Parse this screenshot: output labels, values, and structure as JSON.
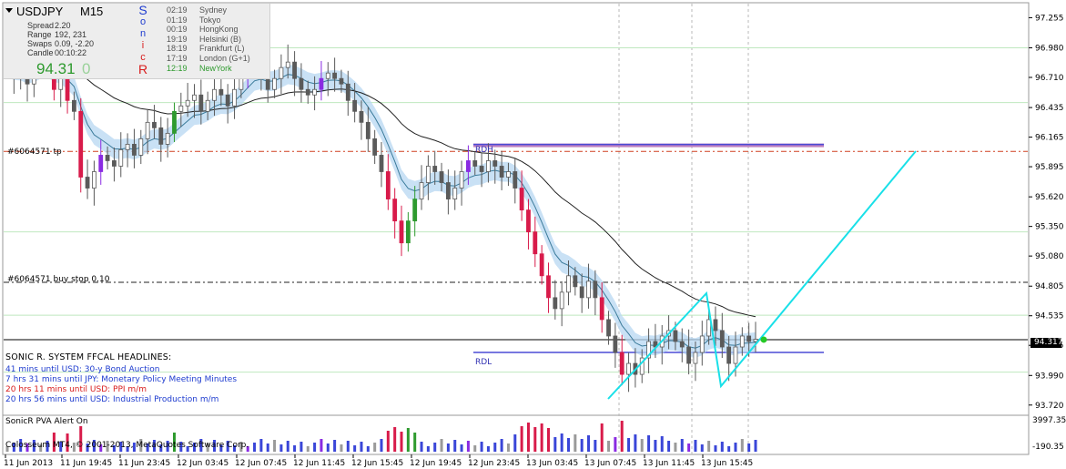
{
  "symbol": "USDJPY",
  "timeframe": "M15",
  "info": {
    "rows": [
      {
        "label": "Spread",
        "value": "2.20"
      },
      {
        "label": "Range",
        "value": "192, 231"
      },
      {
        "label": "Swaps",
        "value": "0.09, -2.20"
      },
      {
        "label": "Candle",
        "value": "00:10:22"
      }
    ],
    "price_main": "94.31",
    "price_tail": "0",
    "sonic_letters": [
      "S",
      "o",
      "n",
      "i",
      "c",
      "R"
    ]
  },
  "sessions": [
    {
      "time": "02:19",
      "name": "Sydney",
      "color": "#555555"
    },
    {
      "time": "01:19",
      "name": "Tokyo",
      "color": "#555555"
    },
    {
      "time": "00:19",
      "name": "HongKong",
      "color": "#555555"
    },
    {
      "time": "19:19",
      "name": "Helsinki  (B)",
      "color": "#555555"
    },
    {
      "time": "18:19",
      "name": "Frankfurt  (L)",
      "color": "#555555"
    },
    {
      "time": "17:19",
      "name": "London  (G+1)",
      "color": "#555555"
    },
    {
      "time": "12:19",
      "name": "NewYork",
      "color": "#2e9a2e"
    }
  ],
  "order_labels": {
    "tp": "#6064571 tp",
    "buy_stop": "#6064571 buy stop 0.10"
  },
  "level_labels": {
    "rdl": "RDL",
    "rdh": "RDH"
  },
  "headlines": {
    "title": "SONIC R. SYSTEM  FFCAL HEADLINES:",
    "items": [
      {
        "text": "41 mins until USD: 30-y Bond Auction",
        "color": "#1e3ccf"
      },
      {
        "text": "7 hrs 31 mins until JPY: Monetary Policy Meeting Minutes",
        "color": "#1e3ccf"
      },
      {
        "text": "20 hrs 11 mins until USD: PPI m/m",
        "color": "#d81b1b"
      },
      {
        "text": "20 hrs 56 mins until USD: Industrial Production m/m",
        "color": "#1e3ccf"
      }
    ]
  },
  "subwindow": {
    "title": "SonicR PVA   Alert On",
    "copyright": "Colosseum MT4, © 2001-2013, MetaQuotes Software Corp.",
    "scale_top": "3997.35",
    "scale_bottom": "-190.35"
  },
  "current_price_label": "94.317",
  "colors": {
    "bull": "#5a5a5a",
    "bear": "#5a5a5a",
    "climax_up": "#2e9a2e",
    "climax_down": "#d81b4a",
    "rising": "#8a2be2",
    "ema_band": "#b7d7f2",
    "ema_line": "#3a7a9a",
    "slow_ma": "#222222",
    "trendline": "#19e0e8",
    "rdh_line": "#4b4bd6",
    "rdh_line2": "#c080c0",
    "tp_line": "#d04020"
  },
  "chart_data": {
    "type": "candlestick",
    "price_axis_ticks": [
      "97.255",
      "96.980",
      "96.710",
      "96.435",
      "96.165",
      "95.895",
      "95.620",
      "95.350",
      "95.080",
      "94.805",
      "94.535",
      "94.265",
      "93.990",
      "93.720"
    ],
    "time_axis_ticks": [
      "11 Jun 2013",
      "11 Jun 19:45",
      "11 Jun 23:45",
      "12 Jun 03:45",
      "12 Jun 07:45",
      "12 Jun 11:45",
      "12 Jun 15:45",
      "12 Jun 19:45",
      "12 Jun 23:45",
      "13 Jun 03:45",
      "13 Jun 07:45",
      "13 Jun 11:45",
      "13 Jun 15:45"
    ],
    "ylim": [
      93.66,
      97.35
    ],
    "levels": {
      "tp": 96.035,
      "buy_stop": 94.84,
      "rdh": 96.09,
      "rdl": 94.2,
      "current": 94.317,
      "green_lines": [
        96.98,
        96.48,
        95.3,
        94.54,
        94.02
      ]
    },
    "close": [
      96.8,
      96.7,
      96.75,
      96.65,
      96.8,
      96.9,
      96.85,
      96.6,
      96.7,
      96.5,
      96.4,
      95.8,
      95.7,
      95.85,
      96.0,
      95.95,
      95.9,
      96.05,
      96.1,
      96.0,
      96.15,
      96.3,
      96.25,
      96.1,
      96.2,
      96.4,
      96.45,
      96.5,
      96.55,
      96.4,
      96.5,
      96.6,
      96.55,
      96.45,
      96.6,
      96.75,
      96.85,
      96.9,
      96.75,
      96.6,
      96.7,
      96.8,
      96.85,
      96.7,
      96.6,
      96.55,
      96.6,
      96.7,
      96.75,
      96.7,
      96.65,
      96.5,
      96.4,
      96.3,
      96.15,
      96.0,
      95.85,
      95.6,
      95.4,
      95.2,
      95.4,
      95.6,
      95.75,
      95.9,
      95.85,
      95.75,
      95.6,
      95.7,
      95.85,
      95.95,
      95.9,
      95.85,
      95.95,
      95.9,
      95.8,
      95.85,
      95.7,
      95.5,
      95.3,
      95.1,
      94.9,
      94.7,
      94.6,
      94.75,
      94.9,
      94.8,
      94.7,
      94.85,
      94.7,
      94.5,
      94.35,
      94.2,
      94.0,
      94.1,
      94.0,
      94.15,
      94.3,
      94.25,
      94.35,
      94.4,
      94.3,
      94.25,
      94.1,
      94.2,
      94.35,
      94.5,
      94.4,
      94.25,
      94.1,
      94.25,
      94.35,
      94.3,
      94.32
    ]
  }
}
